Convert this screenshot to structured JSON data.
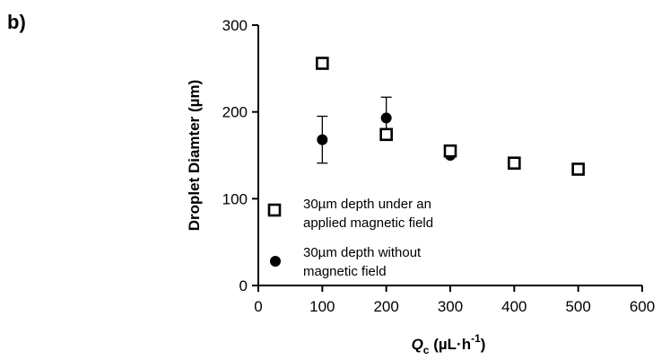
{
  "panel_label": "b)",
  "chart_data": {
    "type": "scatter",
    "xlabel_main": "Q",
    "xlabel_sub": "c",
    "xlabel_units_pre": " (µL·h",
    "xlabel_units_sup": "-1",
    "xlabel_units_post": ")",
    "ylabel": "Droplet Diamter (µm)",
    "xlim": [
      0,
      600
    ],
    "ylim": [
      0,
      300
    ],
    "xticks": [
      0,
      100,
      200,
      300,
      400,
      500,
      600
    ],
    "yticks": [
      0,
      100,
      200,
      300
    ],
    "grid": false,
    "legend_position": "inside-lower-left",
    "series": [
      {
        "name_lines": [
          "30µm depth under an",
          "applied magnetic field"
        ],
        "marker": "square-open",
        "color": "#000000",
        "x": [
          100,
          200,
          300,
          400,
          500
        ],
        "y": [
          256,
          174,
          155,
          141,
          134
        ]
      },
      {
        "name_lines": [
          "30µm depth without",
          "magnetic field"
        ],
        "marker": "circle-filled",
        "color": "#000000",
        "x": [
          100,
          200,
          300,
          400,
          500
        ],
        "y": [
          168,
          193,
          150,
          140,
          134
        ],
        "error_low": [
          141,
          170,
          null,
          null,
          null
        ],
        "error_high": [
          195,
          217,
          null,
          null,
          null
        ]
      }
    ]
  }
}
